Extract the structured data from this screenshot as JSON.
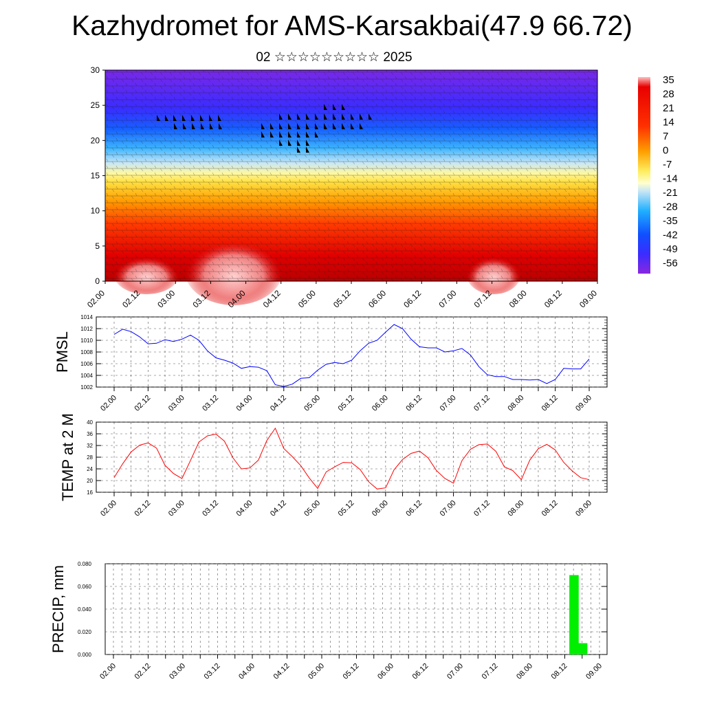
{
  "title": "Kazhydromet for AMS-Karsakbai(47.9 66.72)",
  "subtitle": "02 ☆☆☆☆☆☆☆☆☆ 2025",
  "colors": {
    "pmsl_line": "#0000ff",
    "temp_line": "#ff0000",
    "precip_bar": "#00ee00"
  },
  "time_ticks": [
    "02.00",
    "02.12",
    "03.00",
    "03.12",
    "04.00",
    "04.12",
    "05.00",
    "05.12",
    "06.00",
    "06.12",
    "07.00",
    "07.12",
    "08.00",
    "08.12",
    "09.00"
  ],
  "chart_data": [
    {
      "type": "heatmap",
      "name": "cross-section",
      "y_ticks": [
        "0",
        "5",
        "10",
        "15",
        "20",
        "25",
        "30"
      ],
      "ylim": [
        0,
        30
      ],
      "colorbar_labels": [
        "35",
        "28",
        "21",
        "14",
        "7",
        "0",
        "-7",
        "-14",
        "-21",
        "-28",
        "-35",
        "-42",
        "-49",
        "-56"
      ],
      "colorbar_range": [
        -60,
        38
      ]
    },
    {
      "type": "line",
      "ylabel": "PMSL",
      "y_ticks": [
        "1014",
        "1012",
        "1010",
        "1008",
        "1006",
        "1004",
        "1002"
      ],
      "ylim": [
        1002,
        1014
      ],
      "values": [
        1011.0,
        1011.9,
        1011.5,
        1010.6,
        1009.4,
        1009.5,
        1010.1,
        1009.8,
        1010.2,
        1010.9,
        1010.0,
        1008.2,
        1007.0,
        1006.6,
        1006.1,
        1005.2,
        1005.5,
        1005.4,
        1004.8,
        1002.4,
        1002.1,
        1002.5,
        1003.5,
        1003.6,
        1004.9,
        1005.9,
        1006.2,
        1006.0,
        1006.6,
        1008.2,
        1009.5,
        1010.0,
        1011.4,
        1012.7,
        1012.0,
        1010.2,
        1008.9,
        1008.7,
        1008.7,
        1008.0,
        1008.2,
        1008.6,
        1007.5,
        1005.5,
        1004.1,
        1003.8,
        1003.8,
        1003.3,
        1003.3,
        1003.2,
        1003.3,
        1002.6,
        1003.3,
        1005.2,
        1005.1,
        1005.1,
        1006.8
      ]
    },
    {
      "type": "line",
      "ylabel": "TEMP at 2 M",
      "y_ticks": [
        "40",
        "36",
        "32",
        "28",
        "24",
        "20",
        "16"
      ],
      "ylim": [
        16,
        40
      ],
      "values": [
        21.0,
        25.7,
        29.8,
        32.1,
        32.9,
        31.1,
        25.2,
        22.4,
        20.7,
        26.9,
        33.2,
        35.3,
        35.9,
        33.5,
        27.8,
        24.0,
        24.3,
        27.0,
        33.7,
        37.9,
        31.0,
        28.2,
        25.1,
        20.9,
        17.3,
        23.0,
        24.7,
        26.2,
        26.1,
        23.8,
        19.6,
        17.1,
        17.5,
        23.7,
        27.2,
        29.3,
        30.1,
        27.8,
        23.4,
        20.7,
        19.1,
        26.8,
        30.7,
        32.3,
        32.5,
        30.0,
        24.7,
        23.4,
        20.3,
        27.0,
        30.9,
        32.4,
        30.5,
        26.2,
        23.3,
        21.0,
        20.3
      ]
    },
    {
      "type": "bar",
      "ylabel": "PRECIP, mm",
      "y_ticks": [
        "0.080",
        "0.060",
        "0.040",
        "0.020",
        "0.000"
      ],
      "ylim": [
        0,
        0.08
      ],
      "bars": [
        {
          "x_hours": 159,
          "value": 0.07
        },
        {
          "x_hours": 162,
          "value": 0.01
        }
      ]
    }
  ]
}
